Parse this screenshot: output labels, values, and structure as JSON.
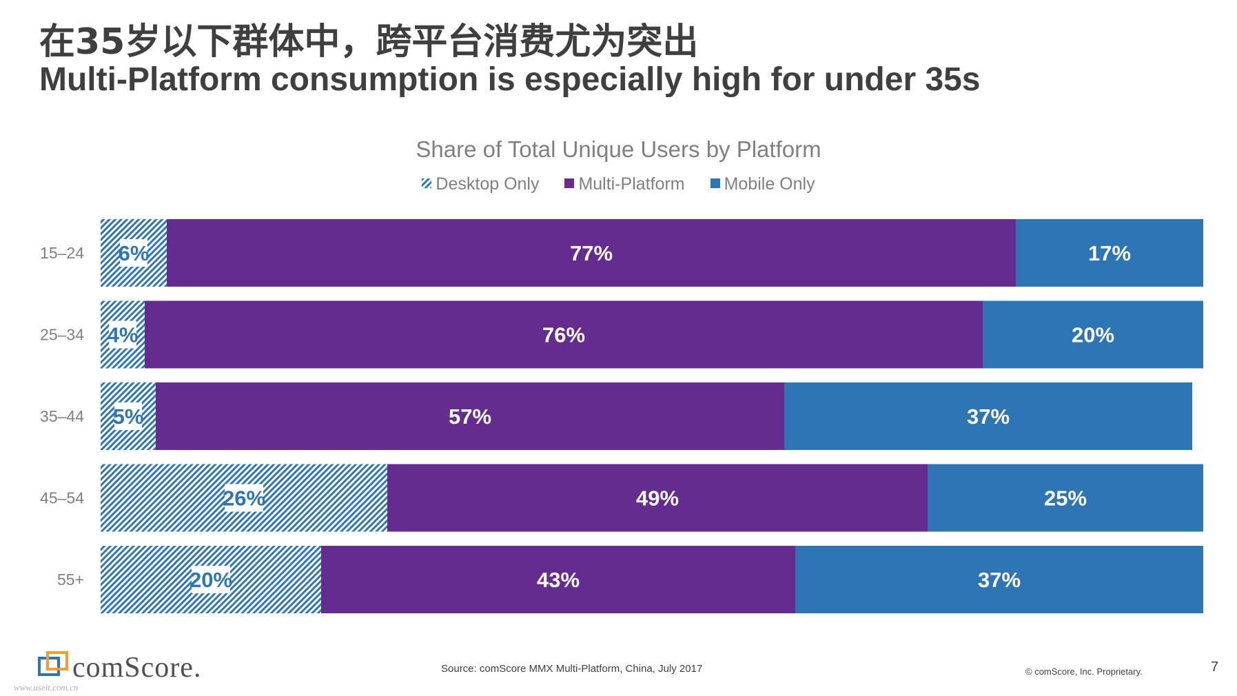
{
  "header": {
    "title_cn": "在35岁以下群体中，跨平台消费尤为突出",
    "title_en": "Multi-Platform consumption is especially high for under 35s"
  },
  "chart_data": {
    "type": "bar",
    "orientation": "horizontal",
    "stacked": true,
    "title": "Share of Total Unique Users by Platform",
    "categories": [
      "15–24",
      "25–34",
      "35–44",
      "45–54",
      "55+"
    ],
    "series": [
      {
        "name": "Desktop Only",
        "values": [
          6,
          4,
          5,
          26,
          20
        ],
        "labels": [
          "6%",
          "4%",
          "5%",
          "26%",
          "20%"
        ],
        "color": "#2e75b6",
        "pattern": "hatch"
      },
      {
        "name": "Multi-Platform",
        "values": [
          77,
          76,
          57,
          49,
          43
        ],
        "labels": [
          "77%",
          "76%",
          "57%",
          "49%",
          "43%"
        ],
        "color": "#652c8f"
      },
      {
        "name": "Mobile Only",
        "values": [
          17,
          20,
          37,
          25,
          37
        ],
        "labels": [
          "17%",
          "20%",
          "37%",
          "25%",
          "37%"
        ],
        "color": "#2e75b6"
      }
    ],
    "xlim": [
      0,
      100
    ],
    "legend_position": "top",
    "grid": false
  },
  "footer": {
    "logo_text": "comScore.",
    "watermark": "www.useit.com.cn",
    "source": "Source: comScore MMX Multi-Platform, China, July 2017",
    "copyright": "© comScore, Inc. Proprietary.",
    "page_number": "7"
  }
}
